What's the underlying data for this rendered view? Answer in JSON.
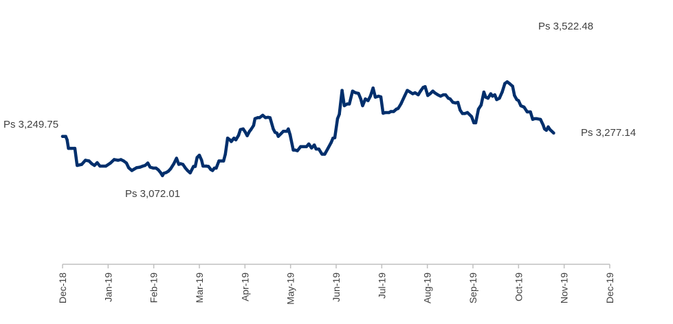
{
  "chart_data": {
    "type": "line",
    "title": "",
    "xlabel": "",
    "ylabel": "",
    "ylim": [
      2700,
      3650
    ],
    "x_ticks": [
      "Dec-18",
      "Jan-19",
      "Feb-19",
      "Mar-19",
      "Apr-19",
      "May-19",
      "Jun-19",
      "Jul-19",
      "Aug-19",
      "Sep-19",
      "Oct-19",
      "Nov-19",
      "Dec-19"
    ],
    "grid": false,
    "legend": "none",
    "colors": {
      "line": "#002F6C",
      "axis": "#BFBFBF",
      "text": "#404040"
    },
    "series": [
      {
        "values": [
          [
            0.0,
            3250
          ],
          [
            0.07,
            3250
          ],
          [
            0.1,
            3240
          ],
          [
            0.13,
            3215
          ],
          [
            0.27,
            3215
          ],
          [
            0.32,
            3165
          ],
          [
            0.42,
            3168
          ],
          [
            0.5,
            3180
          ],
          [
            0.58,
            3178
          ],
          [
            0.64,
            3170
          ],
          [
            0.7,
            3165
          ],
          [
            0.76,
            3173
          ],
          [
            0.82,
            3163
          ],
          [
            0.95,
            3163
          ],
          [
            1.05,
            3172
          ],
          [
            1.13,
            3182
          ],
          [
            1.22,
            3180
          ],
          [
            1.28,
            3182
          ],
          [
            1.34,
            3178
          ],
          [
            1.4,
            3172
          ],
          [
            1.45,
            3158
          ],
          [
            1.52,
            3150
          ],
          [
            1.57,
            3154
          ],
          [
            1.62,
            3158
          ],
          [
            1.7,
            3160
          ],
          [
            1.76,
            3163
          ],
          [
            1.81,
            3165
          ],
          [
            1.87,
            3172
          ],
          [
            1.92,
            3160
          ],
          [
            1.99,
            3157
          ],
          [
            2.05,
            3157
          ],
          [
            2.1,
            3152
          ],
          [
            2.15,
            3144
          ],
          [
            2.19,
            3135
          ],
          [
            2.22,
            3142
          ],
          [
            2.27,
            3144
          ],
          [
            2.32,
            3148
          ],
          [
            2.37,
            3155
          ],
          [
            2.44,
            3170
          ],
          [
            2.5,
            3186
          ],
          [
            2.55,
            3168
          ],
          [
            2.59,
            3170
          ],
          [
            2.64,
            3168
          ],
          [
            2.69,
            3158
          ],
          [
            2.74,
            3150
          ],
          [
            2.8,
            3143
          ],
          [
            2.87,
            3162
          ],
          [
            2.91,
            3162
          ],
          [
            2.95,
            3188
          ],
          [
            3.0,
            3195
          ],
          [
            3.05,
            3180
          ],
          [
            3.08,
            3163
          ],
          [
            3.15,
            3163
          ],
          [
            3.2,
            3162
          ],
          [
            3.25,
            3153
          ],
          [
            3.29,
            3150
          ],
          [
            3.33,
            3157
          ],
          [
            3.37,
            3157
          ],
          [
            3.43,
            3178
          ],
          [
            3.53,
            3178
          ],
          [
            3.57,
            3198
          ],
          [
            3.62,
            3245
          ],
          [
            3.67,
            3240
          ],
          [
            3.7,
            3235
          ],
          [
            3.76,
            3245
          ],
          [
            3.8,
            3240
          ],
          [
            3.86,
            3253
          ],
          [
            3.9,
            3270
          ],
          [
            3.96,
            3272
          ],
          [
            4.01,
            3262
          ],
          [
            4.05,
            3252
          ],
          [
            4.1,
            3265
          ],
          [
            4.13,
            3270
          ],
          [
            4.19,
            3282
          ],
          [
            4.22,
            3302
          ],
          [
            4.28,
            3305
          ],
          [
            4.32,
            3305
          ],
          [
            4.39,
            3312
          ],
          [
            4.45,
            3305
          ],
          [
            4.51,
            3306
          ],
          [
            4.55,
            3305
          ],
          [
            4.62,
            3272
          ],
          [
            4.66,
            3262
          ],
          [
            4.7,
            3260
          ],
          [
            4.73,
            3250
          ],
          [
            4.79,
            3258
          ],
          [
            4.84,
            3265
          ],
          [
            4.92,
            3265
          ],
          [
            4.95,
            3272
          ],
          [
            4.99,
            3255
          ],
          [
            5.06,
            3210
          ],
          [
            5.1,
            3210
          ],
          [
            5.15,
            3208
          ],
          [
            5.22,
            3220
          ],
          [
            5.35,
            3220
          ],
          [
            5.4,
            3228
          ],
          [
            5.46,
            3216
          ],
          [
            5.52,
            3225
          ],
          [
            5.56,
            3213
          ],
          [
            5.62,
            3213
          ],
          [
            5.69,
            3198
          ],
          [
            5.75,
            3198
          ],
          [
            5.82,
            3215
          ],
          [
            5.89,
            3232
          ],
          [
            5.93,
            3245
          ],
          [
            5.97,
            3246
          ],
          [
            6.03,
            3302
          ],
          [
            6.07,
            3315
          ],
          [
            6.13,
            3385
          ],
          [
            6.18,
            3340
          ],
          [
            6.24,
            3345
          ],
          [
            6.29,
            3345
          ],
          [
            6.36,
            3383
          ],
          [
            6.42,
            3378
          ],
          [
            6.49,
            3376
          ],
          [
            6.54,
            3360
          ],
          [
            6.58,
            3340
          ],
          [
            6.64,
            3360
          ],
          [
            6.7,
            3355
          ],
          [
            6.75,
            3368
          ],
          [
            6.81,
            3392
          ],
          [
            6.86,
            3365
          ],
          [
            6.93,
            3368
          ],
          [
            6.98,
            3366
          ],
          [
            7.03,
            3318
          ],
          [
            7.08,
            3320
          ],
          [
            7.16,
            3320
          ],
          [
            7.2,
            3323
          ],
          [
            7.26,
            3323
          ],
          [
            7.32,
            3330
          ],
          [
            7.36,
            3332
          ],
          [
            7.42,
            3345
          ],
          [
            7.5,
            3368
          ],
          [
            7.56,
            3385
          ],
          [
            7.62,
            3380
          ],
          [
            7.68,
            3375
          ],
          [
            7.73,
            3378
          ],
          [
            7.8,
            3372
          ],
          [
            7.85,
            3383
          ],
          [
            7.91,
            3394
          ],
          [
            7.95,
            3396
          ],
          [
            8.01,
            3370
          ],
          [
            8.06,
            3375
          ],
          [
            8.12,
            3383
          ],
          [
            8.16,
            3378
          ],
          [
            8.23,
            3372
          ],
          [
            8.29,
            3368
          ],
          [
            8.35,
            3372
          ],
          [
            8.4,
            3372
          ],
          [
            8.46,
            3362
          ],
          [
            8.5,
            3360
          ],
          [
            8.56,
            3350
          ],
          [
            8.62,
            3348
          ],
          [
            8.67,
            3350
          ],
          [
            8.72,
            3327
          ],
          [
            8.77,
            3317
          ],
          [
            8.82,
            3317
          ],
          [
            8.88,
            3320
          ],
          [
            8.97,
            3308
          ],
          [
            9.02,
            3290
          ],
          [
            9.06,
            3290
          ],
          [
            9.12,
            3330
          ],
          [
            9.18,
            3342
          ],
          [
            9.24,
            3380
          ],
          [
            9.28,
            3365
          ],
          [
            9.33,
            3362
          ],
          [
            9.39,
            3375
          ],
          [
            9.43,
            3368
          ],
          [
            9.48,
            3372
          ],
          [
            9.52,
            3358
          ],
          [
            9.58,
            3362
          ],
          [
            9.64,
            3380
          ],
          [
            9.7,
            3405
          ],
          [
            9.75,
            3410
          ],
          [
            9.8,
            3405
          ],
          [
            9.87,
            3397
          ],
          [
            9.91,
            3370
          ],
          [
            9.96,
            3358
          ],
          [
            10.0,
            3355
          ],
          [
            10.05,
            3340
          ],
          [
            10.12,
            3336
          ],
          [
            10.19,
            3322
          ],
          [
            10.26,
            3322
          ],
          [
            10.31,
            3300
          ],
          [
            10.35,
            3302
          ],
          [
            10.4,
            3302
          ],
          [
            10.48,
            3300
          ],
          [
            10.54,
            3283
          ],
          [
            10.57,
            3272
          ],
          [
            10.61,
            3268
          ],
          [
            10.65,
            3278
          ],
          [
            10.69,
            3270
          ],
          [
            10.73,
            3265
          ],
          [
            10.77,
            3260
          ]
        ]
      }
    ],
    "annotations": [
      {
        "label": "Ps 3,249.75"
      },
      {
        "label": "Ps 3,072.01"
      },
      {
        "label": "Ps 3,522.48"
      },
      {
        "label": "Ps 3,277.14"
      }
    ]
  }
}
